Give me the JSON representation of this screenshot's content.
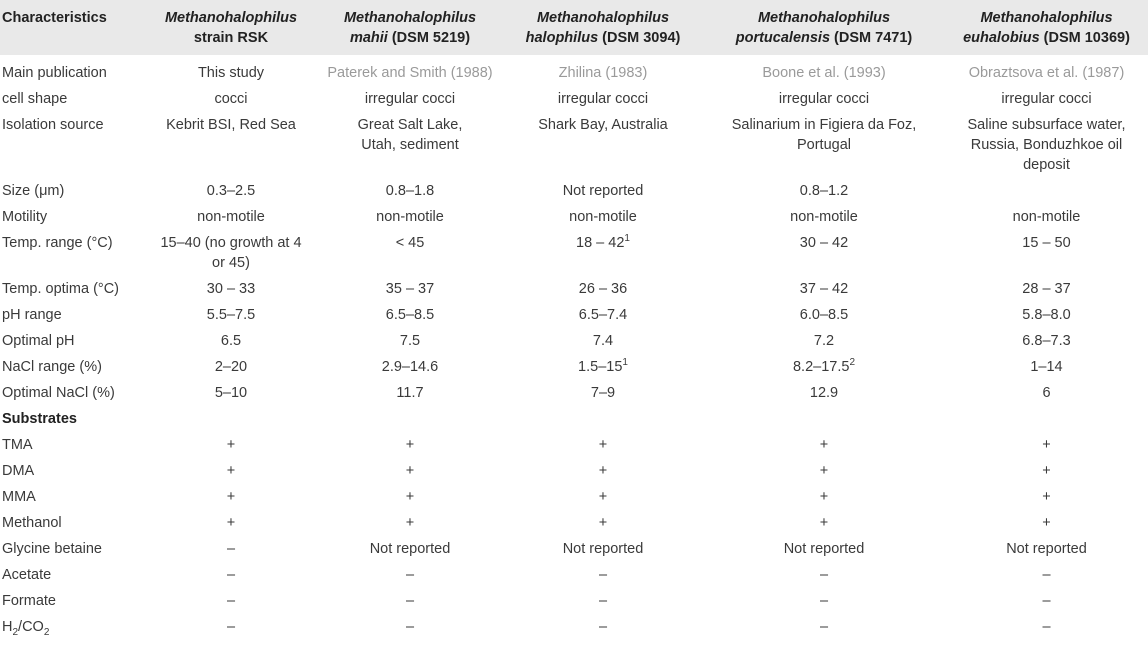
{
  "headers": [
    {
      "line1": "Characteristics",
      "line2": ""
    },
    {
      "line1": "Methanohalophilus",
      "line2": "strain RSK",
      "line2_italic": false
    },
    {
      "line1": "Methanohalophilus",
      "line2_italic_part": "mahii",
      "line2": " (DSM 5219)"
    },
    {
      "line1": "Methanohalophilus",
      "line2_italic_part": "halophilus",
      "line2": " (DSM 3094)"
    },
    {
      "line1": "Methanohalophilus",
      "line2_italic_part": "portucalensis",
      "line2": " (DSM 7471)"
    },
    {
      "line1": "Methanohalophilus",
      "line2_italic_part": "euhalobius",
      "line2": " (DSM 10369)"
    }
  ],
  "rows": {
    "publication": {
      "label": "Main publication",
      "values": [
        "This study",
        "Paterek and Smith (1988)",
        "Zhilina (1983)",
        "Boone et al. (1993)",
        "Obraztsova et al. (1987)"
      ]
    },
    "cell_shape": {
      "label": "cell shape",
      "values": [
        "cocci",
        "irregular cocci",
        "irregular cocci",
        "irregular cocci",
        "irregular cocci"
      ]
    },
    "isolation": {
      "label": "Isolation source",
      "values": [
        "Kebrit BSI, Red Sea",
        "Great Salt Lake, Utah, sediment",
        "Shark Bay, Australia",
        "Salinarium in Figiera da Foz, Portugal",
        "Saline subsurface water, Russia, Bonduzhkoe oil deposit"
      ]
    },
    "size": {
      "label": "Size (μm)",
      "values": [
        "0.3–2.5",
        "0.8–1.8",
        "Not reported",
        "0.8–1.2",
        ""
      ]
    },
    "motility": {
      "label": "Motility",
      "values": [
        "non-motile",
        "non-motile",
        "non-motile",
        "non-motile",
        "non-motile"
      ]
    },
    "temp_range": {
      "label": "Temp. range (°C)",
      "values": [
        "15–40 (no growth at 4 or 45)",
        "< 45",
        "18 – 42",
        "30 – 42",
        "15 – 50"
      ],
      "sup3": "1"
    },
    "temp_opt": {
      "label": "Temp. optima (°C)",
      "values": [
        "30 – 33",
        "35 – 37",
        "26 – 36",
        "37 – 42",
        "28 – 37"
      ]
    },
    "ph_range": {
      "label": "pH range",
      "values": [
        "5.5–7.5",
        "6.5–8.5",
        "6.5–7.4",
        "6.0–8.5",
        "5.8–8.0"
      ]
    },
    "ph_opt": {
      "label": "Optimal pH",
      "values": [
        "6.5",
        "7.5",
        "7.4",
        "7.2",
        "6.8–7.3"
      ]
    },
    "nacl_range": {
      "label": "NaCl range (%)",
      "values": [
        "2–20",
        "2.9–14.6",
        "1.5–15",
        "8.2–17.5",
        "1–14"
      ],
      "sup3": "1",
      "sup4": "2"
    },
    "nacl_opt": {
      "label": "Optimal NaCl (%)",
      "values": [
        "5–10",
        "11.7",
        "7–9",
        "12.9",
        "6"
      ]
    },
    "substrates": {
      "label": "Substrates"
    },
    "tma": {
      "label": "TMA",
      "values": [
        "+",
        "+",
        "+",
        "+",
        "+"
      ]
    },
    "dma": {
      "label": "DMA",
      "values": [
        "+",
        "+",
        "+",
        "+",
        "+"
      ]
    },
    "mma": {
      "label": "MMA",
      "values": [
        "+",
        "+",
        "+",
        "+",
        "+"
      ]
    },
    "methanol": {
      "label": "Methanol",
      "values": [
        "+",
        "+",
        "+",
        "+",
        "+"
      ]
    },
    "glycine": {
      "label": "Glycine betaine",
      "values": [
        "–",
        "Not reported",
        "Not reported",
        "Not reported",
        "Not reported"
      ]
    },
    "acetate": {
      "label": "Acetate",
      "values": [
        "–",
        "–",
        "–",
        "–",
        "–"
      ]
    },
    "formate": {
      "label": "Formate",
      "values": [
        "–",
        "–",
        "–",
        "–",
        "–"
      ]
    },
    "h2co2": {
      "label_a": "H",
      "label_sub1": "2",
      "label_b": "/CO",
      "label_sub2": "2",
      "values": [
        "–",
        "–",
        "–",
        "–",
        "–"
      ]
    }
  }
}
